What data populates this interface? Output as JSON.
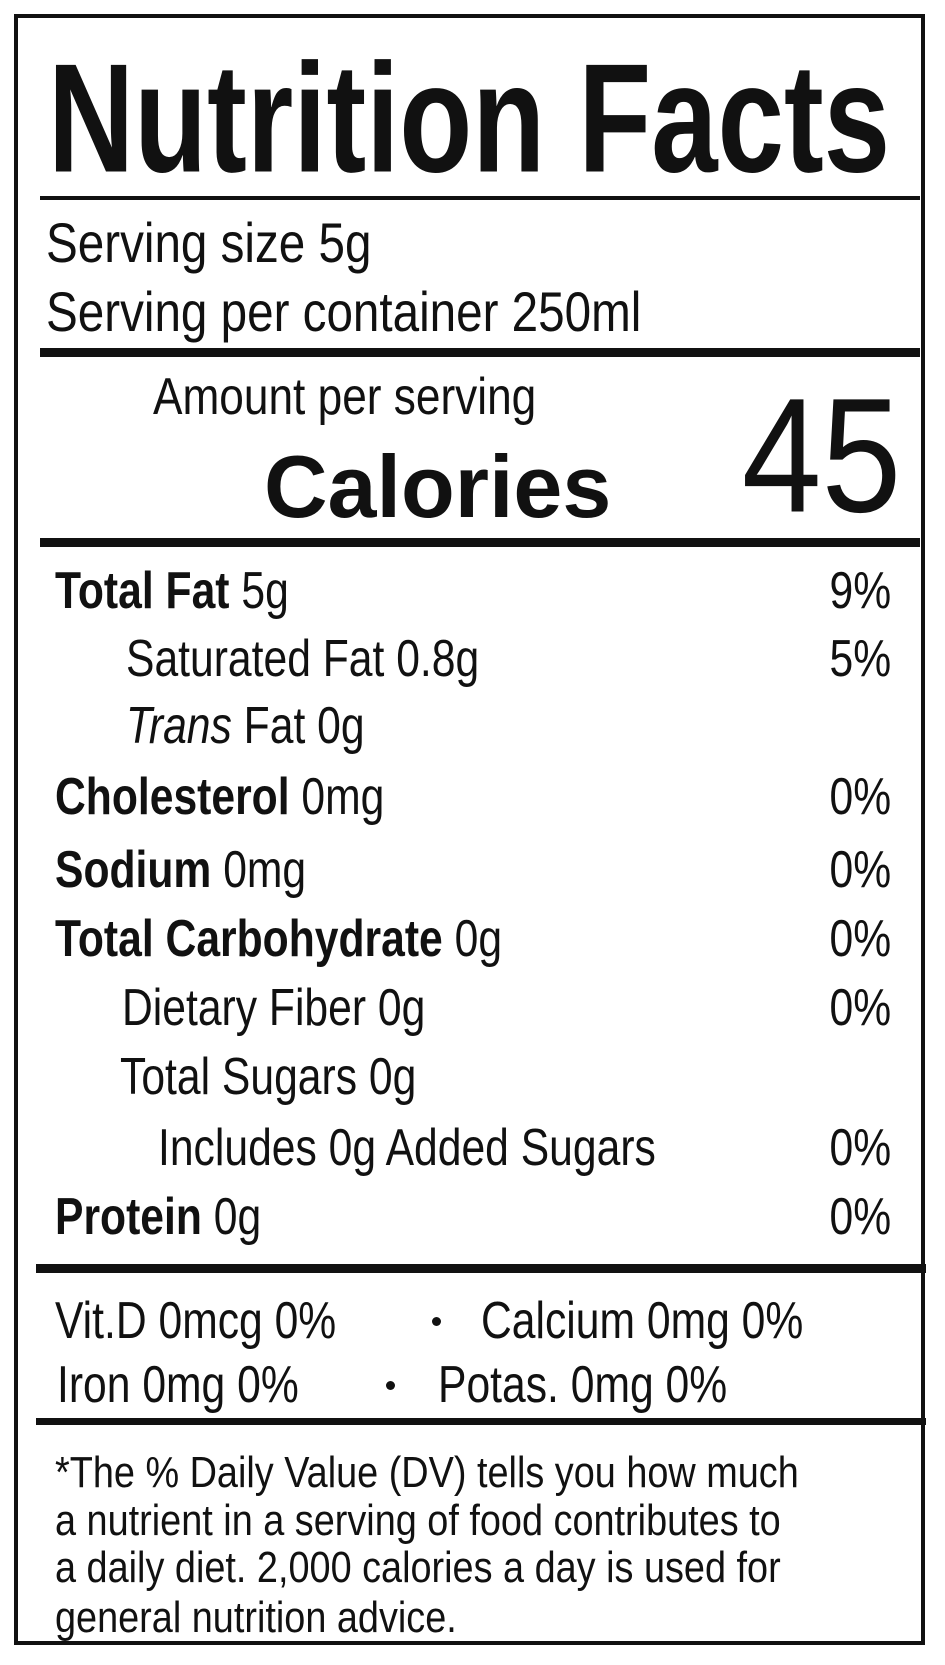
{
  "title": "Nutrition Facts",
  "serving": {
    "size": "Serving size 5g",
    "per_container": "Serving per container 250ml"
  },
  "calories": {
    "header": "Amount per serving",
    "label": "Calories",
    "value": "45"
  },
  "nutrients": [
    {
      "name": "Total Fat",
      "amount": "5g",
      "dv": "9%"
    },
    {
      "name": "Saturated Fat 0.8g",
      "dv": "5%"
    },
    {
      "name_italic": "Trans",
      "name": "Fat 0g"
    },
    {
      "name": "Cholesterol",
      "amount": "0mg",
      "dv": "0%"
    },
    {
      "name": "Sodium",
      "amount": "0mg",
      "dv": "0%"
    },
    {
      "name": "Total Carbohydrate",
      "amount": "0g",
      "dv": "0%"
    },
    {
      "name": "Dietary Fiber 0g",
      "dv": "0%"
    },
    {
      "name": "Total Sugars 0g"
    },
    {
      "name": "Includes 0g Added Sugars",
      "dv": "0%"
    },
    {
      "name": "Protein",
      "amount": "0g",
      "dv": "0%"
    }
  ],
  "vitamins": [
    [
      "Vit.D 0mcg 0%",
      "Calcium 0mg 0%"
    ],
    [
      "Iron 0mg 0%",
      "Potas. 0mg 0%"
    ]
  ],
  "footnote": [
    "*The % Daily Value (DV) tells you how much",
    "a nutrient in a serving of food contributes to",
    "a daily diet. 2,000 calories a day is used for",
    "general nutrition advice."
  ]
}
